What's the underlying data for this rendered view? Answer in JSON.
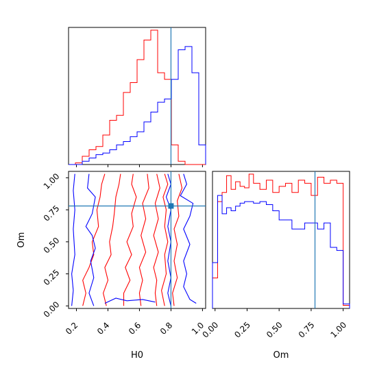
{
  "chart_data": [
    {
      "type": "histogram",
      "panel": "H0 marginal",
      "xlim": [
        0.15,
        1.02
      ],
      "bin_edges": [
        0.15,
        0.1935,
        0.237,
        0.2805,
        0.324,
        0.3675,
        0.411,
        0.4545,
        0.498,
        0.5415,
        0.585,
        0.6285,
        0.672,
        0.7155,
        0.759,
        0.8025,
        0.846,
        0.8895,
        0.933,
        0.9765,
        1.02
      ],
      "series": [
        {
          "color": "#ff0000",
          "values": [
            0,
            0.01,
            0.05,
            0.09,
            0.11,
            0.18,
            0.27,
            0.3,
            0.44,
            0.5,
            0.64,
            0.76,
            0.82,
            0.56,
            0.52,
            0.12,
            0.02,
            0,
            0,
            0
          ]
        },
        {
          "color": "#0000ff",
          "values": [
            0,
            0,
            0.02,
            0.04,
            0.06,
            0.07,
            0.09,
            0.12,
            0.14,
            0.17,
            0.2,
            0.26,
            0.32,
            0.38,
            0.4,
            0.52,
            0.7,
            0.72,
            0.56,
            0.12
          ]
        }
      ],
      "truth_x": 0.8,
      "xticks": [
        0.2,
        0.4,
        0.6,
        0.8,
        1.0
      ],
      "show_tick_labels": false
    },
    {
      "type": "contour",
      "panel": "Om vs H0",
      "xlim": [
        0.15,
        1.02
      ],
      "ylim": [
        -0.02,
        1.05
      ],
      "xlabel": "H0",
      "ylabel": "Om",
      "xticks": [
        0.2,
        0.4,
        0.6,
        0.8,
        1.0
      ],
      "xtick_labels": [
        "0.2",
        "0.4",
        "0.6",
        "0.8",
        "1.0"
      ],
      "yticks": [
        0.0,
        0.25,
        0.5,
        0.75,
        1.0
      ],
      "ytick_labels": [
        "0.00",
        "0.25",
        "0.50",
        "0.75",
        "1.00"
      ],
      "truth": {
        "x": 0.8,
        "y": 0.78
      },
      "series": [
        {
          "color": "#ff0000",
          "contours": [
            [
              [
                0.38,
                1.03
              ],
              [
                0.36,
                0.95
              ],
              [
                0.35,
                0.85
              ],
              [
                0.33,
                0.75
              ],
              [
                0.34,
                0.62
              ],
              [
                0.3,
                0.5
              ],
              [
                0.31,
                0.4
              ],
              [
                0.28,
                0.3
              ],
              [
                0.24,
                0.2
              ],
              [
                0.26,
                0.1
              ],
              [
                0.24,
                0.0
              ]
            ],
            [
              [
                0.48,
                1.03
              ],
              [
                0.47,
                0.95
              ],
              [
                0.45,
                0.85
              ],
              [
                0.44,
                0.72
              ],
              [
                0.43,
                0.62
              ],
              [
                0.41,
                0.5
              ],
              [
                0.42,
                0.4
              ],
              [
                0.38,
                0.3
              ],
              [
                0.4,
                0.2
              ],
              [
                0.37,
                0.1
              ],
              [
                0.39,
                0.0
              ]
            ],
            [
              [
                0.56,
                1.03
              ],
              [
                0.55,
                0.95
              ],
              [
                0.58,
                0.85
              ],
              [
                0.55,
                0.72
              ],
              [
                0.56,
                0.62
              ],
              [
                0.52,
                0.5
              ],
              [
                0.55,
                0.4
              ],
              [
                0.51,
                0.3
              ],
              [
                0.54,
                0.2
              ],
              [
                0.5,
                0.1
              ],
              [
                0.5,
                0.0
              ]
            ],
            [
              [
                0.65,
                1.03
              ],
              [
                0.66,
                0.92
              ],
              [
                0.62,
                0.8
              ],
              [
                0.64,
                0.68
              ],
              [
                0.61,
                0.55
              ],
              [
                0.64,
                0.42
              ],
              [
                0.6,
                0.3
              ],
              [
                0.62,
                0.2
              ],
              [
                0.6,
                0.1
              ],
              [
                0.61,
                0.0
              ]
            ],
            [
              [
                0.71,
                1.03
              ],
              [
                0.73,
                0.92
              ],
              [
                0.7,
                0.8
              ],
              [
                0.72,
                0.68
              ],
              [
                0.69,
                0.55
              ],
              [
                0.72,
                0.42
              ],
              [
                0.69,
                0.3
              ],
              [
                0.71,
                0.2
              ],
              [
                0.7,
                0.1
              ],
              [
                0.71,
                0.0
              ]
            ],
            [
              [
                0.76,
                1.03
              ],
              [
                0.78,
                0.95
              ],
              [
                0.75,
                0.85
              ],
              [
                0.77,
                0.75
              ],
              [
                0.76,
                0.62
              ],
              [
                0.78,
                0.5
              ],
              [
                0.76,
                0.4
              ],
              [
                0.77,
                0.25
              ],
              [
                0.74,
                0.12
              ],
              [
                0.76,
                0.0
              ]
            ],
            [
              [
                0.85,
                1.03
              ],
              [
                0.87,
                0.92
              ],
              [
                0.84,
                0.82
              ],
              [
                0.85,
                0.7
              ],
              [
                0.82,
                0.6
              ],
              [
                0.84,
                0.48
              ],
              [
                0.82,
                0.35
              ],
              [
                0.84,
                0.22
              ],
              [
                0.81,
                0.1
              ],
              [
                0.82,
                0.0
              ]
            ]
          ]
        },
        {
          "color": "#0000ff",
          "contours": [
            [
              [
                0.19,
                1.03
              ],
              [
                0.18,
                0.9
              ],
              [
                0.19,
                0.75
              ],
              [
                0.18,
                0.6
              ],
              [
                0.19,
                0.4
              ],
              [
                0.17,
                0.25
              ],
              [
                0.18,
                0.12
              ],
              [
                0.17,
                0.0
              ]
            ],
            [
              [
                0.28,
                1.03
              ],
              [
                0.27,
                0.92
              ],
              [
                0.32,
                0.85
              ],
              [
                0.3,
                0.72
              ],
              [
                0.26,
                0.62
              ],
              [
                0.3,
                0.55
              ],
              [
                0.32,
                0.45
              ],
              [
                0.29,
                0.35
              ],
              [
                0.31,
                0.22
              ],
              [
                0.28,
                0.1
              ],
              [
                0.31,
                0.0
              ]
            ],
            [
              [
                0.78,
                1.03
              ],
              [
                0.8,
                0.95
              ],
              [
                0.77,
                0.85
              ],
              [
                0.8,
                0.75
              ],
              [
                0.78,
                0.62
              ],
              [
                0.8,
                0.5
              ],
              [
                0.78,
                0.35
              ],
              [
                0.8,
                0.22
              ],
              [
                0.78,
                0.1
              ],
              [
                0.8,
                0.0
              ]
            ],
            [
              [
                0.88,
                1.03
              ],
              [
                0.9,
                0.95
              ],
              [
                0.86,
                0.86
              ],
              [
                0.94,
                0.8
              ],
              [
                0.92,
                0.7
              ],
              [
                0.88,
                0.6
              ],
              [
                0.92,
                0.48
              ],
              [
                0.88,
                0.35
              ],
              [
                0.9,
                0.25
              ],
              [
                0.88,
                0.15
              ],
              [
                0.92,
                0.05
              ],
              [
                0.96,
                0.02
              ]
            ],
            [
              [
                0.38,
                0.02
              ],
              [
                0.45,
                0.06
              ],
              [
                0.52,
                0.04
              ],
              [
                0.62,
                0.05
              ],
              [
                0.7,
                0.03
              ]
            ]
          ]
        }
      ]
    },
    {
      "type": "histogram",
      "panel": "Om marginal",
      "xlim": [
        -0.02,
        1.05
      ],
      "xlabel": "Om",
      "xticks": [
        0.0,
        0.25,
        0.5,
        0.75,
        1.0
      ],
      "xtick_labels": [
        "0.00",
        "0.25",
        "0.50",
        "0.75",
        "1.00"
      ],
      "bin_edges": [
        -0.02,
        0.02,
        0.055,
        0.09,
        0.125,
        0.16,
        0.195,
        0.23,
        0.265,
        0.3,
        0.35,
        0.4,
        0.45,
        0.5,
        0.55,
        0.6,
        0.65,
        0.7,
        0.75,
        0.8,
        0.85,
        0.9,
        0.95,
        1.0,
        1.05
      ],
      "series": [
        {
          "color": "#ff0000",
          "values": [
            0.2,
            0.7,
            0.76,
            0.87,
            0.78,
            0.83,
            0.8,
            0.79,
            0.88,
            0.82,
            0.78,
            0.84,
            0.76,
            0.8,
            0.82,
            0.76,
            0.84,
            0.82,
            0.74,
            0.86,
            0.82,
            0.84,
            0.82,
            0.02
          ]
        },
        {
          "color": "#0000ff",
          "values": [
            0.3,
            0.74,
            0.62,
            0.66,
            0.64,
            0.67,
            0.69,
            0.7,
            0.7,
            0.69,
            0.7,
            0.68,
            0.64,
            0.58,
            0.58,
            0.52,
            0.52,
            0.56,
            0.56,
            0.52,
            0.56,
            0.4,
            0.38,
            0.03
          ]
        }
      ],
      "truth_x": 0.78
    }
  ]
}
